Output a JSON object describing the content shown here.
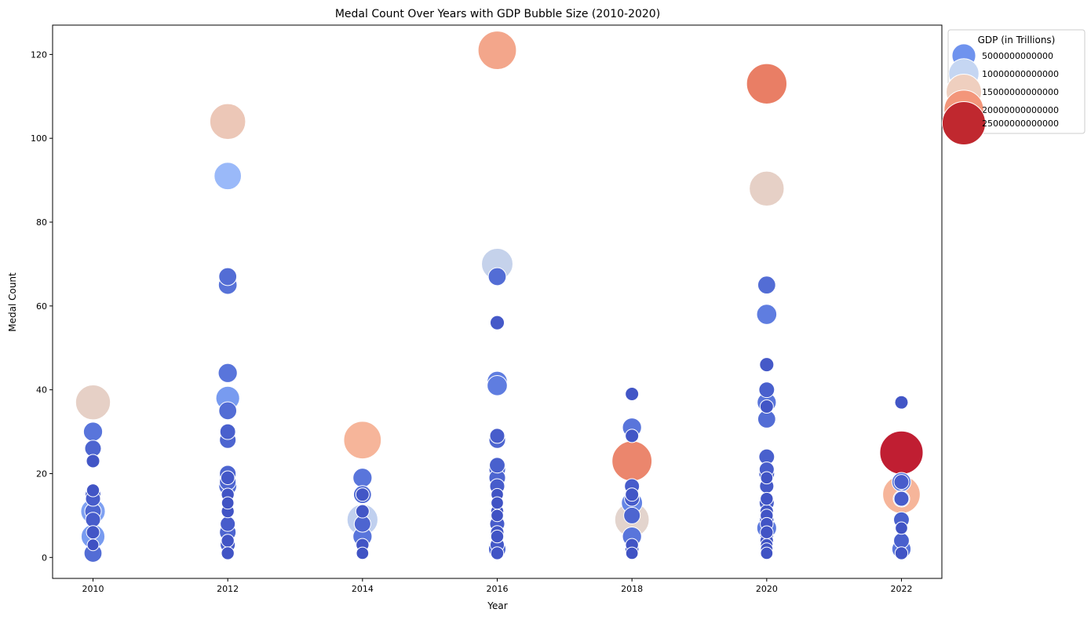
{
  "chart_data": {
    "type": "scatter",
    "title": "Medal Count Over Years with GDP Bubble Size (2010-2020)",
    "xlabel": "Year",
    "ylabel": "Medal Count",
    "xlim": [
      2009.4,
      2022.6
    ],
    "ylim": [
      -5,
      127
    ],
    "x_ticks": [
      "2010",
      "2012",
      "2014",
      "2016",
      "2018",
      "2020",
      "2022"
    ],
    "y_ticks": [
      "0",
      "20",
      "40",
      "60",
      "80",
      "100",
      "120"
    ],
    "grid": false,
    "legend": {
      "title": "GDP (in Trillions)",
      "placement": "outside-top-right",
      "entries": [
        {
          "label": "5000000000000",
          "gdp": 5,
          "color": "#6f93ee"
        },
        {
          "label": "10000000000000",
          "gdp": 10,
          "color": "#c5d6f2"
        },
        {
          "label": "15000000000000",
          "gdp": 15,
          "color": "#efcfbf"
        },
        {
          "label": "20000000000000",
          "gdp": 20,
          "color": "#f3967a"
        },
        {
          "label": "25000000000000",
          "gdp": 25,
          "color": "#c0282f"
        }
      ]
    },
    "size_range": {
      "gdp_min": 0,
      "gdp_max": 26,
      "r_min": 5,
      "r_max": 28
    },
    "color_scale": [
      "#3b4cc0",
      "#6f93ee",
      "#aac7fd",
      "#dddcdc",
      "#f7b89c",
      "#e7745b",
      "#b40426"
    ],
    "series": [
      {
        "year": 2010,
        "points": [
          {
            "y": 37,
            "gdp": 14.5
          },
          {
            "y": 30,
            "gdp": 2.5
          },
          {
            "y": 26,
            "gdp": 1.5
          },
          {
            "y": 23,
            "gdp": 0.6
          },
          {
            "y": 16,
            "gdp": 0.5
          },
          {
            "y": 15,
            "gdp": 1.2
          },
          {
            "y": 14,
            "gdp": 1.0
          },
          {
            "y": 11,
            "gdp": 5.5
          },
          {
            "y": 11,
            "gdp": 1.5
          },
          {
            "y": 9,
            "gdp": 1.0
          },
          {
            "y": 6,
            "gdp": 0.6
          },
          {
            "y": 5,
            "gdp": 5.0
          },
          {
            "y": 3,
            "gdp": 0.3
          },
          {
            "y": 1,
            "gdp": 2.0
          }
        ]
      },
      {
        "year": 2012,
        "points": [
          {
            "y": 104,
            "gdp": 15.5
          },
          {
            "y": 91,
            "gdp": 7.5
          },
          {
            "y": 67,
            "gdp": 2.0
          },
          {
            "y": 65,
            "gdp": 2.3
          },
          {
            "y": 44,
            "gdp": 2.5
          },
          {
            "y": 38,
            "gdp": 5.0
          },
          {
            "y": 35,
            "gdp": 2.0
          },
          {
            "y": 30,
            "gdp": 1.2
          },
          {
            "y": 28,
            "gdp": 1.5
          },
          {
            "y": 20,
            "gdp": 1.5
          },
          {
            "y": 19,
            "gdp": 0.7
          },
          {
            "y": 18,
            "gdp": 1.5
          },
          {
            "y": 17,
            "gdp": 2.0
          },
          {
            "y": 15,
            "gdp": 0.5
          },
          {
            "y": 13,
            "gdp": 0.4
          },
          {
            "y": 11,
            "gdp": 0.5
          },
          {
            "y": 8,
            "gdp": 1.0
          },
          {
            "y": 6,
            "gdp": 1.5
          },
          {
            "y": 4,
            "gdp": 0.5
          },
          {
            "y": 3,
            "gdp": 1.0
          },
          {
            "y": 1,
            "gdp": 0.5
          }
        ]
      },
      {
        "year": 2014,
        "points": [
          {
            "y": 28,
            "gdp": 17.5
          },
          {
            "y": 19,
            "gdp": 2.5
          },
          {
            "y": 15,
            "gdp": 2.0
          },
          {
            "y": 15,
            "gdp": 0.6
          },
          {
            "y": 11,
            "gdp": 0.6
          },
          {
            "y": 9,
            "gdp": 10.5
          },
          {
            "y": 8,
            "gdp": 1.5
          },
          {
            "y": 5,
            "gdp": 2.5
          },
          {
            "y": 3,
            "gdp": 0.5
          },
          {
            "y": 1,
            "gdp": 0.4
          }
        ]
      },
      {
        "year": 2016,
        "points": [
          {
            "y": 121,
            "gdp": 18.5
          },
          {
            "y": 70,
            "gdp": 11.0
          },
          {
            "y": 67,
            "gdp": 2.0
          },
          {
            "y": 56,
            "gdp": 0.8
          },
          {
            "y": 42,
            "gdp": 3.0
          },
          {
            "y": 41,
            "gdp": 3.0
          },
          {
            "y": 29,
            "gdp": 1.0
          },
          {
            "y": 28,
            "gdp": 1.5
          },
          {
            "y": 22,
            "gdp": 1.2
          },
          {
            "y": 21,
            "gdp": 1.5
          },
          {
            "y": 19,
            "gdp": 1.5
          },
          {
            "y": 17,
            "gdp": 1.0
          },
          {
            "y": 15,
            "gdp": 0.4
          },
          {
            "y": 13,
            "gdp": 0.4
          },
          {
            "y": 11,
            "gdp": 0.5
          },
          {
            "y": 10,
            "gdp": 0.4
          },
          {
            "y": 8,
            "gdp": 1.0
          },
          {
            "y": 6,
            "gdp": 0.6
          },
          {
            "y": 5,
            "gdp": 0.5
          },
          {
            "y": 3,
            "gdp": 0.8
          },
          {
            "y": 2,
            "gdp": 1.8
          },
          {
            "y": 1,
            "gdp": 0.5
          }
        ]
      },
      {
        "year": 2018,
        "points": [
          {
            "y": 39,
            "gdp": 0.6
          },
          {
            "y": 31,
            "gdp": 2.5
          },
          {
            "y": 29,
            "gdp": 0.6
          },
          {
            "y": 23,
            "gdp": 20.5
          },
          {
            "y": 17,
            "gdp": 1.0
          },
          {
            "y": 15,
            "gdp": 0.6
          },
          {
            "y": 14,
            "gdp": 1.0
          },
          {
            "y": 13,
            "gdp": 3.5
          },
          {
            "y": 10,
            "gdp": 1.5
          },
          {
            "y": 9,
            "gdp": 14.0
          },
          {
            "y": 5,
            "gdp": 2.5
          },
          {
            "y": 3,
            "gdp": 0.5
          },
          {
            "y": 2,
            "gdp": 0.7
          },
          {
            "y": 1,
            "gdp": 0.4
          }
        ]
      },
      {
        "year": 2020,
        "points": [
          {
            "y": 113,
            "gdp": 21.0
          },
          {
            "y": 88,
            "gdp": 14.5
          },
          {
            "y": 65,
            "gdp": 2.0
          },
          {
            "y": 58,
            "gdp": 3.0
          },
          {
            "y": 46,
            "gdp": 0.8
          },
          {
            "y": 40,
            "gdp": 1.2
          },
          {
            "y": 37,
            "gdp": 2.5
          },
          {
            "y": 36,
            "gdp": 0.6
          },
          {
            "y": 33,
            "gdp": 2.0
          },
          {
            "y": 24,
            "gdp": 1.2
          },
          {
            "y": 21,
            "gdp": 1.0
          },
          {
            "y": 20,
            "gdp": 1.2
          },
          {
            "y": 19,
            "gdp": 0.4
          },
          {
            "y": 17,
            "gdp": 0.8
          },
          {
            "y": 14,
            "gdp": 0.5
          },
          {
            "y": 13,
            "gdp": 1.0
          },
          {
            "y": 11,
            "gdp": 0.6
          },
          {
            "y": 10,
            "gdp": 0.5
          },
          {
            "y": 9,
            "gdp": 0.8
          },
          {
            "y": 8,
            "gdp": 0.5
          },
          {
            "y": 7,
            "gdp": 2.8
          },
          {
            "y": 6,
            "gdp": 0.5
          },
          {
            "y": 5,
            "gdp": 0.6
          },
          {
            "y": 4,
            "gdp": 0.6
          },
          {
            "y": 3,
            "gdp": 0.4
          },
          {
            "y": 2,
            "gdp": 0.4
          },
          {
            "y": 1,
            "gdp": 0.4
          }
        ]
      },
      {
        "year": 2022,
        "points": [
          {
            "y": 37,
            "gdp": 0.6
          },
          {
            "y": 25,
            "gdp": 25.0
          },
          {
            "y": 18,
            "gdp": 2.5
          },
          {
            "y": 18,
            "gdp": 1.0
          },
          {
            "y": 15,
            "gdp": 17.5
          },
          {
            "y": 14,
            "gdp": 1.5
          },
          {
            "y": 14,
            "gdp": 1.0
          },
          {
            "y": 9,
            "gdp": 1.2
          },
          {
            "y": 7,
            "gdp": 0.4
          },
          {
            "y": 4,
            "gdp": 1.2
          },
          {
            "y": 2,
            "gdp": 2.5
          },
          {
            "y": 1,
            "gdp": 0.5
          }
        ]
      }
    ]
  }
}
